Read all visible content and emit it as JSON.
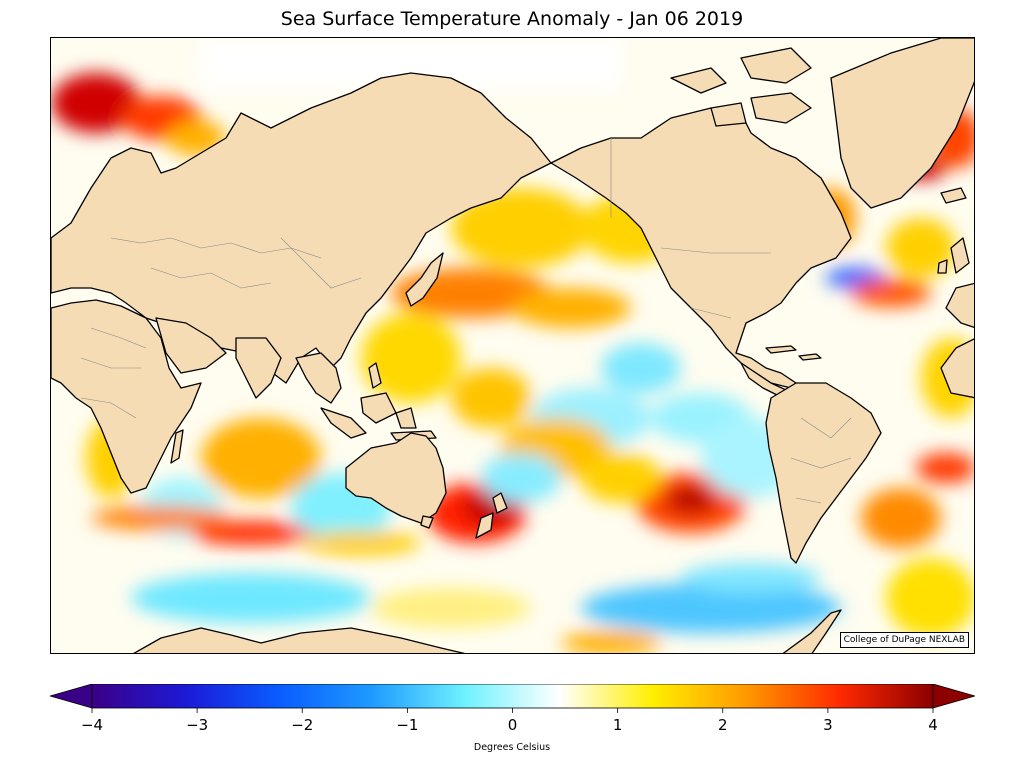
{
  "title": "Sea Surface Temperature Anomaly - Jan 06 2019",
  "credit": "College of DuPage NEXLAB",
  "colorbar": {
    "label": "Degrees Celsius",
    "min": -4,
    "max": 4,
    "extend": "both",
    "ticks": [
      {
        "value": -4,
        "label": "−4"
      },
      {
        "value": -3,
        "label": "−3"
      },
      {
        "value": -2,
        "label": "−2"
      },
      {
        "value": -1,
        "label": "−1"
      },
      {
        "value": 0,
        "label": "0"
      },
      {
        "value": 1,
        "label": "1"
      },
      {
        "value": 2,
        "label": "2"
      },
      {
        "value": 3,
        "label": "3"
      },
      {
        "value": 4,
        "label": "4"
      }
    ],
    "colors": [
      "#3b0088",
      "#1c1ad6",
      "#0a5cff",
      "#1e9bff",
      "#6ff2ff",
      "#ffffff",
      "#ffef00",
      "#ff9900",
      "#ff2a00",
      "#8c0000"
    ]
  },
  "map": {
    "land_color": "#f5dcb4",
    "ocean_base": "#fffdf0"
  }
}
